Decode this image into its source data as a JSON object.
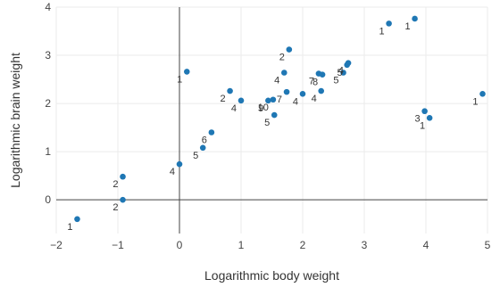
{
  "chart_data": {
    "type": "scatter",
    "title": "",
    "xlabel": "Logarithmic body weight",
    "ylabel": "Logarithmic brain weight",
    "xlim": [
      -2,
      5
    ],
    "ylim": [
      -0.7,
      4
    ],
    "x_ticks": [
      -2,
      -1,
      0,
      1,
      2,
      3,
      4,
      5
    ],
    "y_ticks": [
      0,
      1,
      2,
      3,
      4
    ],
    "grid": true,
    "legend": "none",
    "marker_color": "#1f77b4",
    "points": [
      {
        "x": -1.66,
        "y": -0.4,
        "label": "1"
      },
      {
        "x": -0.92,
        "y": 0.0,
        "label": "2"
      },
      {
        "x": -0.92,
        "y": 0.48,
        "label": "2"
      },
      {
        "x": 0.0,
        "y": 0.74,
        "label": "4"
      },
      {
        "x": 0.38,
        "y": 1.08,
        "label": "5"
      },
      {
        "x": 0.52,
        "y": 1.4,
        "label": "6"
      },
      {
        "x": 0.12,
        "y": 2.66,
        "label": "1"
      },
      {
        "x": 0.82,
        "y": 2.26,
        "label": "2"
      },
      {
        "x": 1.0,
        "y": 2.06,
        "label": "4"
      },
      {
        "x": 1.44,
        "y": 2.06,
        "label": "9"
      },
      {
        "x": 1.52,
        "y": 2.08,
        "label": "10"
      },
      {
        "x": 1.54,
        "y": 1.76,
        "label": "5"
      },
      {
        "x": 1.7,
        "y": 2.64,
        "label": "4"
      },
      {
        "x": 1.78,
        "y": 3.12,
        "label": "2"
      },
      {
        "x": 1.74,
        "y": 2.24,
        "label": "7"
      },
      {
        "x": 2.0,
        "y": 2.2,
        "label": "4"
      },
      {
        "x": 2.26,
        "y": 2.62,
        "label": "7"
      },
      {
        "x": 2.32,
        "y": 2.6,
        "label": "8"
      },
      {
        "x": 2.3,
        "y": 2.26,
        "label": "4"
      },
      {
        "x": 2.66,
        "y": 2.64,
        "label": "5"
      },
      {
        "x": 2.72,
        "y": 2.8,
        "label": "5"
      },
      {
        "x": 2.74,
        "y": 2.84,
        "label": "4"
      },
      {
        "x": 3.4,
        "y": 3.66,
        "label": "1"
      },
      {
        "x": 3.82,
        "y": 3.76,
        "label": "1"
      },
      {
        "x": 3.98,
        "y": 1.84,
        "label": "3"
      },
      {
        "x": 4.06,
        "y": 1.7,
        "label": "1"
      },
      {
        "x": 4.92,
        "y": 2.2,
        "label": "1"
      }
    ]
  }
}
